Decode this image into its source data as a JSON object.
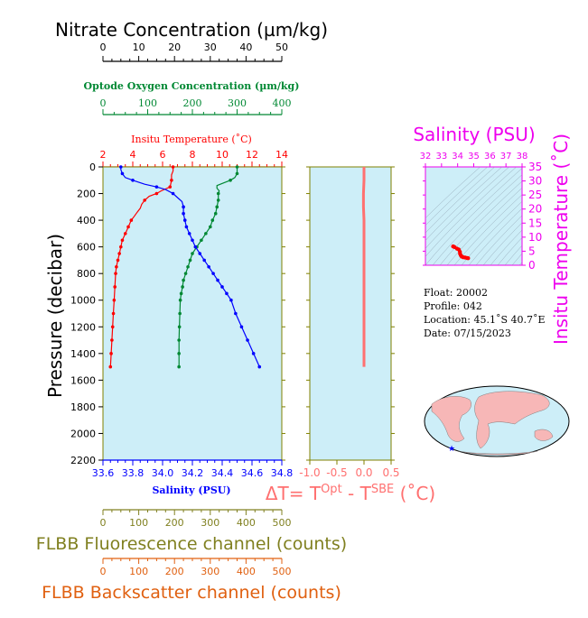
{
  "colors": {
    "nitrate": "#000000",
    "oxygen": "#008833",
    "temperature": "#ff0000",
    "salinity": "#0000ff",
    "sigma": "#800080",
    "fluorescence": "#808020",
    "backscatter": "#e06010",
    "deltaT": "#ff7070",
    "tsAxis": "#ee00ee",
    "panel": "#cdeef8",
    "axisOlive": "#808000"
  },
  "labels": {
    "nitrate_title": "Nitrate Concentration (µm/kg)",
    "oxygen_title": "Optode Oxygen Concentration (µm/kg)",
    "temp_title": "Insitu Temperature (˚C)",
    "pressure_title": "Pressure (decibar)",
    "salinity_title": "Salinity (PSU)",
    "fluor_title": "FLBB Fluorescence channel (counts)",
    "backscatter_title": "FLBB Backscatter channel (counts)",
    "deltaT_prefix": "ΔT= T",
    "deltaT_sup1": "Opt",
    "deltaT_mid": " - T",
    "deltaT_sup2": "SBE",
    "deltaT_suffix": " (˚C)",
    "ts_salinity_title": "Salinity (PSU)",
    "ts_temp_title": "Insitu Temperature (˚C)"
  },
  "info": {
    "float": "Float:  20002",
    "profile": "Profile:  042",
    "location": "Location:  45.1˚S  40.7˚E",
    "date": "Date:  07/15/2023"
  },
  "chart_data": [
    {
      "type": "line",
      "name": "profiles",
      "y_axis": {
        "label": "Pressure (decibar)",
        "range": [
          0,
          2200
        ],
        "ticks": [
          0,
          200,
          400,
          600,
          800,
          1000,
          1200,
          1400,
          1600,
          1800,
          2000,
          2200
        ]
      },
      "axes": {
        "nitrate": {
          "label": "Nitrate Concentration (µm/kg)",
          "range": [
            0,
            50
          ],
          "ticks": [
            0,
            10,
            20,
            30,
            40,
            50
          ]
        },
        "oxygen": {
          "label": "Optode Oxygen Concentration (µm/kg)",
          "range": [
            0,
            400
          ],
          "ticks": [
            0,
            100,
            200,
            300,
            400
          ]
        },
        "temperature": {
          "label": "Insitu Temperature (˚C)",
          "range": [
            2,
            14
          ],
          "ticks": [
            2,
            4,
            6,
            8,
            10,
            12,
            14
          ]
        },
        "salinity": {
          "label": "Salinity (PSU)",
          "range": [
            33.6,
            34.8
          ],
          "ticks": [
            "33.6",
            "33.8",
            "34.0",
            "34.2",
            "34.4",
            "34.6",
            "34.8"
          ]
        },
        "fluorescence": {
          "label": "FLBB Fluorescence channel (counts)",
          "range": [
            0,
            500
          ],
          "ticks": [
            0,
            100,
            200,
            300,
            400,
            500
          ]
        },
        "backscatter": {
          "label": "FLBB Backscatter channel (counts)",
          "range": [
            0,
            500
          ],
          "ticks": [
            0,
            100,
            200,
            300,
            400,
            500
          ]
        }
      },
      "series": {
        "temperature": [
          [
            6.7,
            0
          ],
          [
            6.7,
            10
          ],
          [
            6.7,
            30
          ],
          [
            6.6,
            60
          ],
          [
            6.6,
            100
          ],
          [
            6.5,
            150
          ],
          [
            5.9,
            180
          ],
          [
            5.6,
            200
          ],
          [
            5.1,
            220
          ],
          [
            4.8,
            250
          ],
          [
            4.6,
            280
          ],
          [
            4.5,
            310
          ],
          [
            4.3,
            340
          ],
          [
            4.1,
            370
          ],
          [
            3.9,
            400
          ],
          [
            3.7,
            450
          ],
          [
            3.5,
            500
          ],
          [
            3.3,
            550
          ],
          [
            3.2,
            600
          ],
          [
            3.1,
            650
          ],
          [
            3.0,
            700
          ],
          [
            2.9,
            750
          ],
          [
            2.85,
            800
          ],
          [
            2.8,
            900
          ],
          [
            2.75,
            1000
          ],
          [
            2.7,
            1100
          ],
          [
            2.65,
            1200
          ],
          [
            2.6,
            1300
          ],
          [
            2.55,
            1400
          ],
          [
            2.5,
            1500
          ]
        ],
        "salinity": [
          [
            33.72,
            0
          ],
          [
            33.72,
            20
          ],
          [
            33.73,
            50
          ],
          [
            33.75,
            80
          ],
          [
            33.8,
            100
          ],
          [
            33.88,
            130
          ],
          [
            33.96,
            150
          ],
          [
            34.02,
            170
          ],
          [
            34.07,
            200
          ],
          [
            34.1,
            230
          ],
          [
            34.13,
            260
          ],
          [
            34.14,
            300
          ],
          [
            34.14,
            350
          ],
          [
            34.15,
            400
          ],
          [
            34.16,
            450
          ],
          [
            34.18,
            500
          ],
          [
            34.2,
            550
          ],
          [
            34.22,
            600
          ],
          [
            34.25,
            650
          ],
          [
            34.28,
            700
          ],
          [
            34.31,
            750
          ],
          [
            34.34,
            800
          ],
          [
            34.37,
            850
          ],
          [
            34.4,
            900
          ],
          [
            34.43,
            950
          ],
          [
            34.46,
            1000
          ],
          [
            34.49,
            1100
          ],
          [
            34.53,
            1200
          ],
          [
            34.57,
            1300
          ],
          [
            34.61,
            1400
          ],
          [
            34.65,
            1500
          ]
        ],
        "oxygen": [
          [
            300,
            0
          ],
          [
            300,
            20
          ],
          [
            300,
            50
          ],
          [
            295,
            80
          ],
          [
            285,
            100
          ],
          [
            270,
            120
          ],
          [
            255,
            140
          ],
          [
            255,
            160
          ],
          [
            260,
            180
          ],
          [
            258,
            200
          ],
          [
            258,
            250
          ],
          [
            255,
            300
          ],
          [
            252,
            350
          ],
          [
            245,
            400
          ],
          [
            240,
            450
          ],
          [
            230,
            500
          ],
          [
            220,
            550
          ],
          [
            210,
            600
          ],
          [
            200,
            650
          ],
          [
            195,
            700
          ],
          [
            190,
            750
          ],
          [
            185,
            800
          ],
          [
            180,
            850
          ],
          [
            178,
            900
          ],
          [
            175,
            950
          ],
          [
            173,
            1000
          ],
          [
            172,
            1100
          ],
          [
            171,
            1200
          ],
          [
            170,
            1300
          ],
          [
            170,
            1400
          ],
          [
            170,
            1500
          ]
        ]
      }
    },
    {
      "type": "line",
      "name": "deltaT",
      "x_axis": {
        "label": "ΔT= TOpt - TSBE (˚C)",
        "range": [
          -1.0,
          0.5
        ],
        "ticks": [
          "-1.0",
          "-0.5",
          "0.0",
          "0.5"
        ]
      },
      "y_axis": {
        "range": [
          0,
          2200
        ]
      },
      "series": [
        [
          0.0,
          0
        ],
        [
          0.0,
          100
        ],
        [
          -0.01,
          200
        ],
        [
          -0.01,
          300
        ],
        [
          0.0,
          400
        ],
        [
          0.0,
          600
        ],
        [
          0.0,
          800
        ],
        [
          0.0,
          1000
        ],
        [
          0.0,
          1200
        ],
        [
          0.0,
          1400
        ],
        [
          0.0,
          1500
        ]
      ]
    },
    {
      "type": "scatter",
      "name": "ts-diagram",
      "x_axis": {
        "label": "Salinity (PSU)",
        "range": [
          32,
          38
        ],
        "ticks": [
          32,
          33,
          34,
          35,
          36,
          37,
          38
        ]
      },
      "y_axis": {
        "label": "Insitu Temperature (˚C)",
        "range": [
          0,
          35
        ],
        "ticks": [
          0,
          5,
          10,
          15,
          20,
          25,
          30,
          35
        ]
      },
      "points": [
        [
          33.72,
          6.7
        ],
        [
          33.8,
          6.5
        ],
        [
          33.96,
          5.9
        ],
        [
          34.07,
          5.6
        ],
        [
          34.14,
          4.8
        ],
        [
          34.15,
          4.1
        ],
        [
          34.2,
          3.5
        ],
        [
          34.25,
          3.1
        ],
        [
          34.34,
          2.85
        ],
        [
          34.46,
          2.75
        ],
        [
          34.57,
          2.6
        ],
        [
          34.65,
          2.5
        ]
      ]
    }
  ]
}
